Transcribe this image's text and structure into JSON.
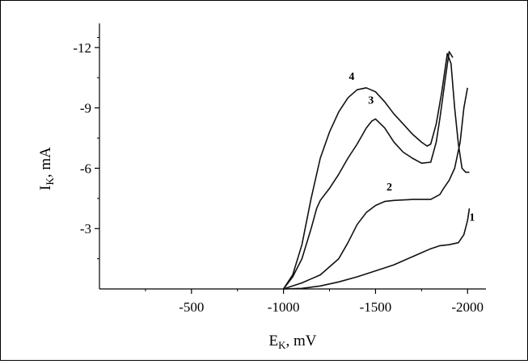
{
  "chart_data": {
    "type": "line",
    "xlabel": "E",
    "xlabel_sub": "K",
    "xlabel_unit": ", mV",
    "ylabel": "I",
    "ylabel_sub": "K",
    "ylabel_unit": ", mA",
    "xlim": [
      0,
      -2100
    ],
    "ylim": [
      0,
      -13.2
    ],
    "x_ticks": [
      -500,
      -1000,
      -1500,
      -2000
    ],
    "x_tick_labels": [
      "-500",
      "-1000",
      "-1500",
      "-2000"
    ],
    "y_ticks": [
      -3,
      -6,
      -9,
      -12
    ],
    "y_tick_labels": [
      "-3",
      "-6",
      "-9",
      "-12"
    ],
    "grid": false,
    "series": [
      {
        "name": "1",
        "x": [
          -1000,
          -1100,
          -1200,
          -1300,
          -1400,
          -1500,
          -1600,
          -1700,
          -1750,
          -1800,
          -1850,
          -1900,
          -1950,
          -1980,
          -2000,
          -2010
        ],
        "y": [
          0,
          -0.03,
          -0.15,
          -0.35,
          -0.6,
          -0.9,
          -1.2,
          -1.6,
          -1.8,
          -2.0,
          -2.15,
          -2.2,
          -2.3,
          -2.7,
          -3.4,
          -4.0
        ]
      },
      {
        "name": "2",
        "x": [
          -1000,
          -1100,
          -1200,
          -1300,
          -1350,
          -1400,
          -1450,
          -1500,
          -1550,
          -1600,
          -1700,
          -1800,
          -1850,
          -1870,
          -1900,
          -1930,
          -1960,
          -1980,
          -2000
        ],
        "y": [
          0,
          -0.3,
          -0.7,
          -1.5,
          -2.3,
          -3.2,
          -3.8,
          -4.15,
          -4.35,
          -4.4,
          -4.45,
          -4.45,
          -4.7,
          -5.0,
          -5.4,
          -6.0,
          -7.3,
          -9.0,
          -10.0
        ]
      },
      {
        "name": "3",
        "x": [
          -1000,
          -1050,
          -1100,
          -1150,
          -1180,
          -1200,
          -1250,
          -1300,
          -1350,
          -1400,
          -1450,
          -1480,
          -1500,
          -1550,
          -1600,
          -1650,
          -1700,
          -1750,
          -1800,
          -1830,
          -1850,
          -1880,
          -1900,
          -1920
        ],
        "y": [
          0,
          -0.6,
          -1.5,
          -3.0,
          -4.0,
          -4.4,
          -5.0,
          -5.7,
          -6.5,
          -7.2,
          -8.0,
          -8.35,
          -8.45,
          -8.0,
          -7.3,
          -6.8,
          -6.5,
          -6.25,
          -6.3,
          -7.3,
          -8.5,
          -10.5,
          -11.8,
          -11.5
        ]
      },
      {
        "name": "4",
        "x": [
          -1000,
          -1050,
          -1100,
          -1150,
          -1200,
          -1250,
          -1300,
          -1350,
          -1400,
          -1450,
          -1500,
          -1550,
          -1600,
          -1650,
          -1700,
          -1750,
          -1780,
          -1800,
          -1830,
          -1860,
          -1890,
          -1910,
          -1930,
          -1950,
          -1970,
          -1990,
          -2010
        ],
        "y": [
          0,
          -0.7,
          -2.2,
          -4.5,
          -6.5,
          -7.8,
          -8.8,
          -9.5,
          -9.9,
          -10.0,
          -9.8,
          -9.3,
          -8.7,
          -8.2,
          -7.7,
          -7.3,
          -7.1,
          -7.2,
          -8.2,
          -9.8,
          -11.7,
          -11.2,
          -9.0,
          -7.2,
          -6.0,
          -5.8,
          -5.8
        ]
      }
    ]
  }
}
